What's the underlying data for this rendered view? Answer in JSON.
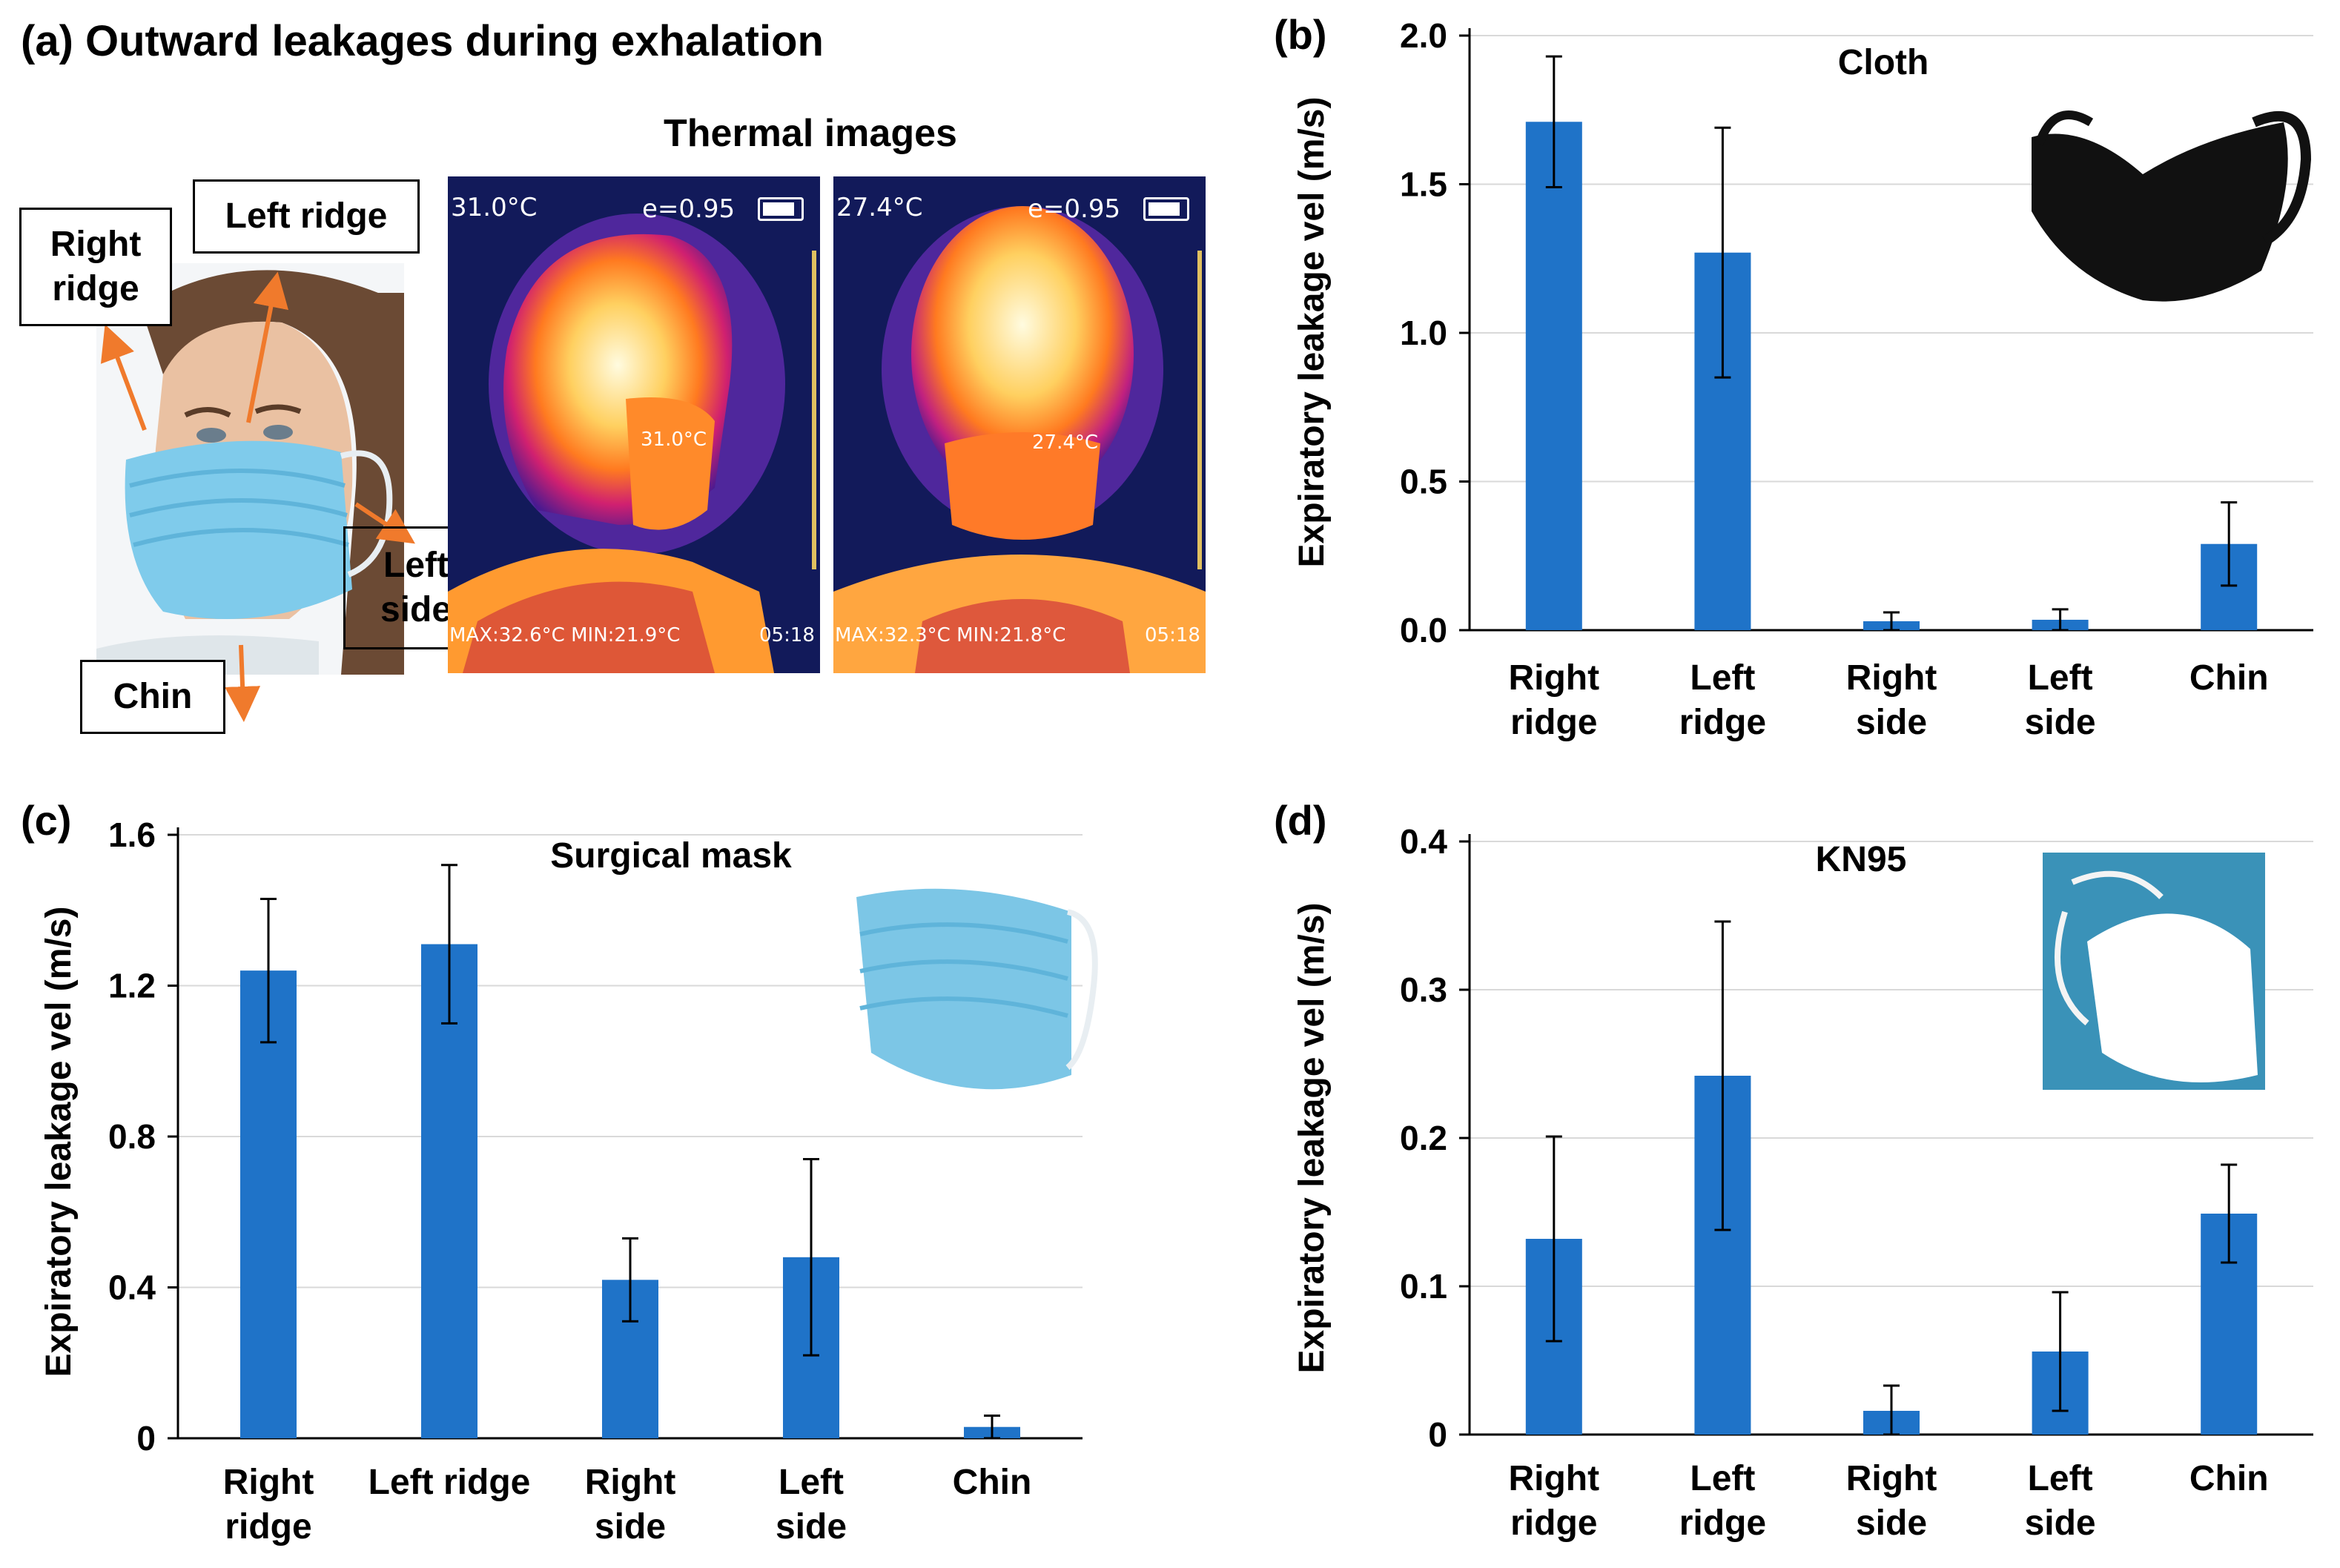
{
  "panel_a": {
    "letter_title": "(a) Outward leakages during exhalation",
    "thermal_title": "Thermal images",
    "labels": {
      "right_ridge": "Right\nridge",
      "left_ridge": "Left ridge",
      "left_side": "Left\nside",
      "chin": "Chin"
    },
    "thermal_left": {
      "temp": "31.0°C",
      "emissivity": "e=0.95",
      "spot": "31.0°C",
      "maxmin": "MAX:32.6°C  MIN:21.9°C",
      "time": "05:18"
    },
    "thermal_right": {
      "temp": "27.4°C",
      "emissivity": "e=0.95",
      "spot": "27.4°C",
      "maxmin": "MAX:32.3°C  MIN:21.8°C",
      "time": "05:18"
    }
  },
  "colors": {
    "bar": "#1f73c8",
    "axis": "#000000",
    "grid": "#d9d9d9",
    "mask_blue": "#7cc6e6",
    "cloth_black": "#111111"
  },
  "chart_data": [
    {
      "id": "b",
      "letter": "(b)",
      "type": "bar",
      "title": "Cloth",
      "ylabel": "Expiratory leakage vel  (m/s)",
      "categories": [
        "Right\nridge",
        "Left\nridge",
        "Right\nside",
        "Left\nside",
        "Chin"
      ],
      "values": [
        1.71,
        1.27,
        0.03,
        0.035,
        0.29
      ],
      "errors": [
        0.22,
        0.42,
        0.03,
        0.035,
        0.14
      ],
      "ylim": [
        0,
        2.0
      ],
      "yticks": [
        0,
        0.5,
        1.0,
        1.5,
        2.0
      ],
      "ytick_labels": [
        "0.0",
        "0.5",
        "1.0",
        "1.5",
        "2.0"
      ],
      "grid": true,
      "legend": "none"
    },
    {
      "id": "c",
      "letter": "(c)",
      "type": "bar",
      "title": "Surgical mask",
      "ylabel": "Expiratory leakage vel  (m/s)",
      "categories": [
        "Right\nridge",
        "Left ridge",
        "Right\nside",
        "Left\nside",
        "Chin"
      ],
      "values": [
        1.24,
        1.31,
        0.42,
        0.48,
        0.03
      ],
      "errors": [
        0.19,
        0.21,
        0.11,
        0.26,
        0.03
      ],
      "ylim": [
        0,
        1.6
      ],
      "yticks": [
        0,
        0.4,
        0.8,
        1.2,
        1.6
      ],
      "ytick_labels": [
        "0",
        "0.4",
        "0.8",
        "1.2",
        "1.6"
      ],
      "grid": true,
      "legend": "none"
    },
    {
      "id": "d",
      "letter": "(d)",
      "type": "bar",
      "title": "KN95",
      "ylabel": "Expiratory leakage vel  (m/s)",
      "categories": [
        "Right\nridge",
        "Left\nridge",
        "Right\nside",
        "Left\nside",
        "Chin"
      ],
      "values": [
        0.132,
        0.242,
        0.016,
        0.056,
        0.149
      ],
      "errors": [
        0.069,
        0.104,
        0.017,
        0.04,
        0.033
      ],
      "ylim": [
        0,
        0.4
      ],
      "yticks": [
        0,
        0.1,
        0.2,
        0.3,
        0.4
      ],
      "ytick_labels": [
        "0",
        "0.1",
        "0.2",
        "0.3",
        "0.4"
      ],
      "grid": true,
      "legend": "none"
    }
  ]
}
